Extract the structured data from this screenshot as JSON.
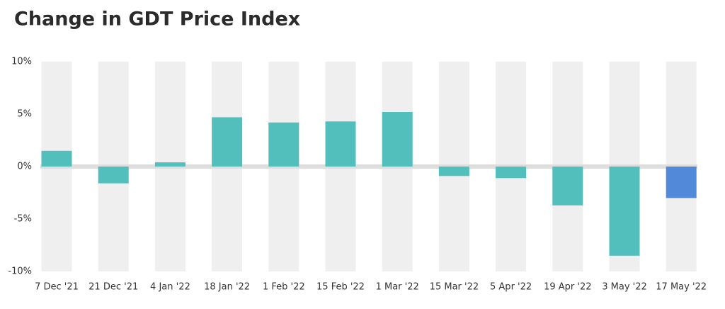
{
  "chart_data": {
    "type": "bar",
    "title": "Change in GDT Price Index",
    "categories": [
      "7 Dec '21",
      "21 Dec '21",
      "4 Jan '22",
      "18 Jan '22",
      "1 Feb '22",
      "15 Feb '22",
      "1 Mar '22",
      "15 Mar '22",
      "5 Apr '22",
      "19 Apr '22",
      "3 May '22",
      "17 May '22"
    ],
    "values": [
      1.5,
      -1.6,
      0.4,
      4.7,
      4.2,
      4.3,
      5.2,
      -0.9,
      -1.1,
      -3.7,
      -8.5,
      -3.0
    ],
    "colors": [
      "#52bfbd",
      "#52bfbd",
      "#52bfbd",
      "#52bfbd",
      "#52bfbd",
      "#52bfbd",
      "#52bfbd",
      "#52bfbd",
      "#52bfbd",
      "#52bfbd",
      "#52bfbd",
      "#5289d8"
    ],
    "ylim": [
      -10,
      10
    ],
    "yticks": [
      {
        "value": -10,
        "label": "-10%"
      },
      {
        "value": -5,
        "label": "-5%"
      },
      {
        "value": 0,
        "label": "0%"
      },
      {
        "value": 5,
        "label": "5%"
      },
      {
        "value": 10,
        "label": "10%"
      }
    ]
  }
}
